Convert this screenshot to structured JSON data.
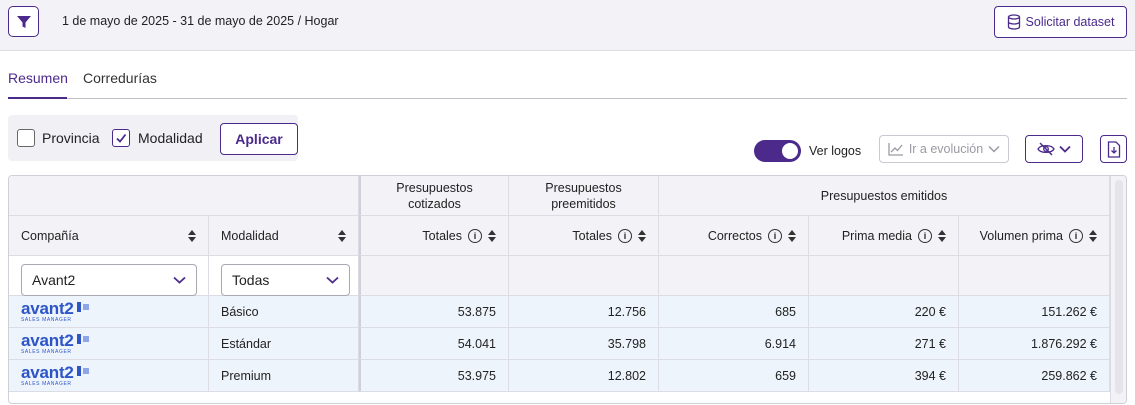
{
  "header": {
    "date_range": "1 de mayo de 2025 - 31 de mayo de 2025 / Hogar",
    "dataset_button": "Solicitar dataset"
  },
  "tabs": [
    {
      "label": "Resumen",
      "active": true
    },
    {
      "label": "Corredurías",
      "active": false
    }
  ],
  "filters": {
    "provincia_label": "Provincia",
    "provincia_checked": false,
    "modalidad_label": "Modalidad",
    "modalidad_checked": true,
    "apply_label": "Aplicar"
  },
  "toolbar": {
    "ver_logos_label": "Ver logos",
    "ver_logos_on": true,
    "evolucion_label": "Ir a evolución"
  },
  "table": {
    "group_headers": {
      "cotizados": "Presupuestos cotizados",
      "preemitidos": "Presupuestos preemitidos",
      "emitidos": "Presupuestos emitidos"
    },
    "columns": {
      "compania": "Compañía",
      "modalidad": "Modalidad",
      "totales_cot": "Totales",
      "totales_pre": "Totales",
      "correctos": "Correctos",
      "prima_media": "Prima media",
      "volumen_prima": "Volumen prima"
    },
    "filter_values": {
      "compania": "Avant2",
      "modalidad": "Todas"
    },
    "logo": {
      "word": "avant2",
      "sub": "SALES MANAGER"
    },
    "rows": [
      {
        "modalidad": "Básico",
        "cotizados": "53.875",
        "preemitidos": "12.756",
        "correctos": "685",
        "prima_media": "220 €",
        "volumen_prima": "151.262 €"
      },
      {
        "modalidad": "Estándar",
        "cotizados": "54.041",
        "preemitidos": "35.798",
        "correctos": "6.914",
        "prima_media": "271 €",
        "volumen_prima": "1.876.292 €"
      },
      {
        "modalidad": "Premium",
        "cotizados": "53.975",
        "preemitidos": "12.802",
        "correctos": "659",
        "prima_media": "394 €",
        "volumen_prima": "259.862 €"
      }
    ]
  },
  "colors": {
    "accent": "#4b2a8c",
    "logo_blue": "#2e55c7",
    "row_bg": "#eef4fb",
    "header_bg": "#f3f3f7"
  }
}
